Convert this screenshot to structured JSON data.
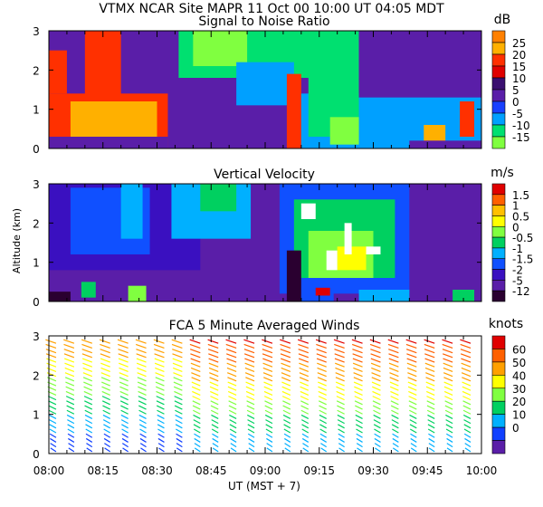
{
  "header": "VTMX  NCAR Site  MAPR 11 Oct 00  10:00 UT  04:05  MDT",
  "x_axis": {
    "ticks": [
      "08:00",
      "08:15",
      "08:30",
      "08:45",
      "09:00",
      "09:15",
      "09:30",
      "09:45",
      "10:00"
    ],
    "label": "UT  (MST + 7)"
  },
  "y_axis_label": "Altitude (km)",
  "chart_data": [
    {
      "type": "heatmap",
      "title": "Signal to Noise Ratio",
      "unit": "dB",
      "x_range": [
        "08:00",
        "10:00"
      ],
      "ylim": [
        0,
        3
      ],
      "y_ticks": [
        "0",
        "1",
        "2",
        "3"
      ],
      "colorbar": {
        "labels": [
          "25",
          "20",
          "15",
          "10",
          "5",
          "0",
          "-5",
          "-10",
          "-15"
        ],
        "colors": [
          "#ff8000",
          "#ffb000",
          "#ff3000",
          "#e00000",
          "#3a0f70",
          "#5a1ea8",
          "#1840ff",
          "#00a0ff",
          "#00e070",
          "#80ff40"
        ]
      },
      "regions": [
        {
          "t0": 0,
          "t1": 38,
          "z0": 0,
          "z1": 3,
          "color": "#5a1ea8"
        },
        {
          "t0": 0,
          "t1": 33,
          "z0": 0,
          "z1": 1.4,
          "color": "#ff3000"
        },
        {
          "t0": 0,
          "t1": 5,
          "z0": 1.4,
          "z1": 2.5,
          "color": "#ff3000"
        },
        {
          "t0": 10,
          "t1": 20,
          "z0": 1.3,
          "z1": 3,
          "color": "#ff3000"
        },
        {
          "t0": 6,
          "t1": 30,
          "z0": 0.3,
          "z1": 1.2,
          "color": "#ffb000"
        },
        {
          "t0": 0,
          "t1": 33,
          "z0": 0,
          "z1": 0.3,
          "color": "#5a1ea8"
        },
        {
          "t0": 36,
          "t1": 86,
          "z0": 1.8,
          "z1": 3,
          "color": "#00e070"
        },
        {
          "t0": 40,
          "t1": 55,
          "z0": 2.1,
          "z1": 3,
          "color": "#80ff40"
        },
        {
          "t0": 52,
          "t1": 68,
          "z0": 1.1,
          "z1": 2.2,
          "color": "#00a0ff"
        },
        {
          "t0": 66,
          "t1": 70,
          "z0": 0,
          "z1": 1.9,
          "color": "#ff3000"
        },
        {
          "t0": 70,
          "t1": 120,
          "z0": 0,
          "z1": 1.4,
          "color": "#00a0ff"
        },
        {
          "t0": 72,
          "t1": 86,
          "z0": 0.3,
          "z1": 2.7,
          "color": "#00e070"
        },
        {
          "t0": 78,
          "t1": 86,
          "z0": 0.1,
          "z1": 0.8,
          "color": "#80ff40"
        },
        {
          "t0": 86,
          "t1": 120,
          "z0": 1.3,
          "z1": 3,
          "color": "#5a1ea8"
        },
        {
          "t0": 104,
          "t1": 110,
          "z0": 0,
          "z1": 0.6,
          "color": "#ffb000"
        },
        {
          "t0": 114,
          "t1": 118,
          "z0": 0.3,
          "z1": 1.2,
          "color": "#ff3000"
        },
        {
          "t0": 100,
          "t1": 120,
          "z0": 0,
          "z1": 0.2,
          "color": "#5a1ea8"
        }
      ]
    },
    {
      "type": "heatmap",
      "title": "Vertical Velocity",
      "unit": "m/s",
      "x_range": [
        "08:00",
        "10:00"
      ],
      "ylim": [
        0,
        3
      ],
      "y_ticks": [
        "0",
        "1",
        "2",
        "3"
      ],
      "colorbar": {
        "labels": [
          "1.5",
          "1",
          "0.5",
          "0",
          "-0.5",
          "-1",
          "-1.5",
          "-2",
          "-5",
          "-12"
        ],
        "colors": [
          "#e00000",
          "#ff6000",
          "#ffc000",
          "#ffff00",
          "#80ff40",
          "#00d060",
          "#00b0ff",
          "#1050ff",
          "#3a10c0",
          "#5a1ea8",
          "#2a0030"
        ]
      },
      "regions": [
        {
          "t0": 0,
          "t1": 120,
          "z0": 0,
          "z1": 3,
          "color": "#5a1ea8"
        },
        {
          "t0": 0,
          "t1": 42,
          "z0": 0.8,
          "z1": 3,
          "color": "#3a10c0"
        },
        {
          "t0": 6,
          "t1": 28,
          "z0": 1.2,
          "z1": 2.9,
          "color": "#1050ff"
        },
        {
          "t0": 20,
          "t1": 26,
          "z0": 1.6,
          "z1": 3,
          "color": "#00b0ff"
        },
        {
          "t0": 34,
          "t1": 56,
          "z0": 1.6,
          "z1": 3,
          "color": "#00b0ff"
        },
        {
          "t0": 42,
          "t1": 52,
          "z0": 2.3,
          "z1": 3,
          "color": "#00d060"
        },
        {
          "t0": 64,
          "t1": 100,
          "z0": 0.2,
          "z1": 3,
          "color": "#1050ff"
        },
        {
          "t0": 68,
          "t1": 96,
          "z0": 0.6,
          "z1": 2.6,
          "color": "#00d060"
        },
        {
          "t0": 72,
          "t1": 90,
          "z0": 0.6,
          "z1": 1.8,
          "color": "#80ff40"
        },
        {
          "t0": 80,
          "t1": 88,
          "z0": 0.8,
          "z1": 1.4,
          "color": "#ffff00"
        },
        {
          "t0": 9,
          "t1": 13,
          "z0": 0.1,
          "z1": 0.5,
          "color": "#00d060"
        },
        {
          "t0": 22,
          "t1": 27,
          "z0": 0,
          "z1": 0.4,
          "color": "#80ff40"
        },
        {
          "t0": 0,
          "t1": 6,
          "z0": 0,
          "z1": 0.25,
          "color": "#2a0030"
        },
        {
          "t0": 69,
          "t1": 79,
          "z0": 0,
          "z1": 0.35,
          "color": "#1050ff"
        },
        {
          "t0": 86,
          "t1": 100,
          "z0": 0,
          "z1": 0.3,
          "color": "#00b0ff"
        },
        {
          "t0": 112,
          "t1": 118,
          "z0": 0,
          "z1": 0.3,
          "color": "#00d060"
        },
        {
          "t0": 74,
          "t1": 78,
          "z0": 0.15,
          "z1": 0.35,
          "color": "#e00000"
        },
        {
          "t0": 70,
          "t1": 74,
          "z0": 2.1,
          "z1": 2.5,
          "color": "#ffffff"
        },
        {
          "t0": 77,
          "t1": 80,
          "z0": 0.8,
          "z1": 1.3,
          "color": "#ffffff"
        },
        {
          "t0": 82,
          "t1": 84,
          "z0": 1.2,
          "z1": 2.0,
          "color": "#ffffff"
        },
        {
          "t0": 88,
          "t1": 92,
          "z0": 1.2,
          "z1": 1.4,
          "color": "#ffffff"
        },
        {
          "t0": 66,
          "t1": 70,
          "z0": 0,
          "z1": 1.3,
          "color": "#2a0030"
        }
      ]
    },
    {
      "type": "scatter",
      "title": "FCA 5 Minute Averaged Winds",
      "unit": "knots",
      "x_range": [
        "08:00",
        "10:00"
      ],
      "ylim": [
        0,
        3
      ],
      "y_ticks": [
        "0",
        "1",
        "2",
        "3"
      ],
      "colorbar": {
        "labels": [
          "60",
          "50",
          "40",
          "30",
          "20",
          "10",
          "0"
        ],
        "colors": [
          "#e00000",
          "#ff6000",
          "#ffa000",
          "#ffff00",
          "#80ff40",
          "#00d060",
          "#00b0ff",
          "#1040ff",
          "#5a1ea8"
        ]
      },
      "profiles_t": [
        2,
        7,
        12,
        17,
        22,
        27,
        32,
        37,
        42,
        47,
        52,
        57,
        62,
        67,
        72,
        77,
        82,
        87,
        92,
        97,
        102,
        107,
        112,
        117
      ],
      "speed_color_profile": "slow near ground, fast aloft; strongest aloft after 08:40"
    }
  ]
}
